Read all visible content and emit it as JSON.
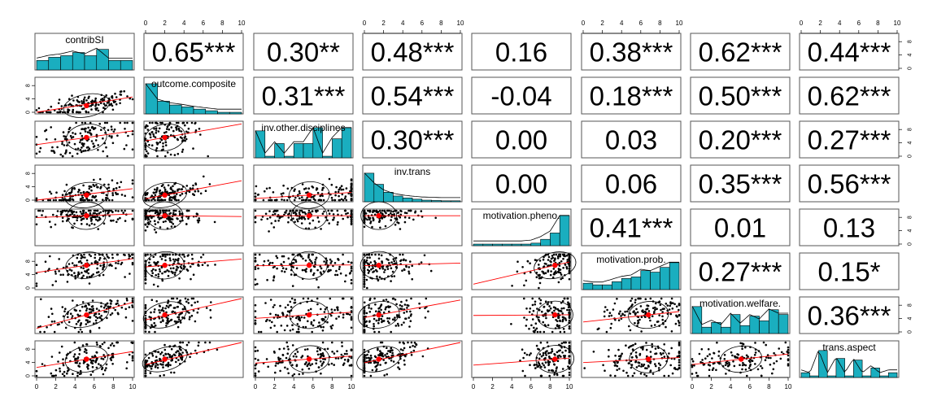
{
  "chart_data": {
    "type": "scatter",
    "title": "",
    "variables": [
      "contribSI",
      "outcome.composite",
      "inv.other.disciplines",
      "inv.trans",
      "motivation.pheno.",
      "motivation.prob.",
      "motivation.welfare.",
      "trans.aspect"
    ],
    "axis_range": [
      0,
      10
    ],
    "axis_ticks": [
      "0",
      "2",
      "4",
      "6",
      "8",
      "10"
    ],
    "side_axis_ticks": [
      "0",
      "4",
      "8"
    ],
    "correlations": [
      [
        "",
        "0.65***",
        "0.30**",
        "0.48***",
        "0.16",
        "0.38***",
        "0.62***",
        "0.44***"
      ],
      [
        "",
        "",
        "0.31***",
        "0.54***",
        "-0.04",
        "0.18***",
        "0.50***",
        "0.62***"
      ],
      [
        "",
        "",
        "",
        "0.30***",
        "0.00",
        "0.03",
        "0.20***",
        "0.27***"
      ],
      [
        "",
        "",
        "",
        "",
        "0.00",
        "0.06",
        "0.35***",
        "0.56***"
      ],
      [
        "",
        "",
        "",
        "",
        "",
        "0.41***",
        "0.01",
        "0.13"
      ],
      [
        "",
        "",
        "",
        "",
        "",
        "",
        "0.27***",
        "0.15*"
      ],
      [
        "",
        "",
        "",
        "",
        "",
        "",
        "",
        "0.36***"
      ],
      [
        "",
        "",
        "",
        "",
        "",
        "",
        "",
        ""
      ]
    ],
    "means": [
      5.2,
      2.0,
      5.6,
      1.5,
      8.5,
      6.8,
      5.1,
      5.0
    ],
    "spread": [
      2.4,
      2.0,
      3.3,
      2.0,
      1.6,
      2.6,
      3.0,
      2.6
    ],
    "histograms": [
      [
        0.3,
        0.4,
        0.45,
        0.55,
        0.45,
        0.65,
        0.3,
        0.3
      ],
      [
        0.95,
        0.4,
        0.28,
        0.22,
        0.15,
        0.1,
        0.05,
        0.05
      ],
      [
        0.85,
        0.05,
        0.45,
        0.05,
        0.45,
        0.45,
        0.95,
        0.05,
        0.6,
        0.95
      ],
      [
        0.9,
        0.55,
        0.3,
        0.18,
        0.12,
        0.08,
        0.05,
        0.04,
        0.03,
        0.03
      ],
      [
        0.05,
        0.05,
        0.05,
        0.05,
        0.05,
        0.05,
        0.08,
        0.2,
        0.4,
        0.95
      ],
      [
        0.2,
        0.15,
        0.15,
        0.25,
        0.35,
        0.4,
        0.6,
        0.55,
        0.7,
        0.85
      ],
      [
        0.85,
        0.2,
        0.35,
        0.2,
        0.6,
        0.25,
        0.55,
        0.4,
        0.75,
        0.6
      ],
      [
        0.15,
        0.05,
        0.85,
        0.05,
        0.6,
        0.05,
        0.55,
        0.05,
        0.3,
        0.05,
        0.15
      ]
    ],
    "colors": {
      "hist_fill": "#1aaebf",
      "points": "#000000",
      "fit_line": "#ff0000",
      "mean_point": "#ff0000",
      "ellipse": "#000000",
      "panel_border": "#555555"
    }
  }
}
